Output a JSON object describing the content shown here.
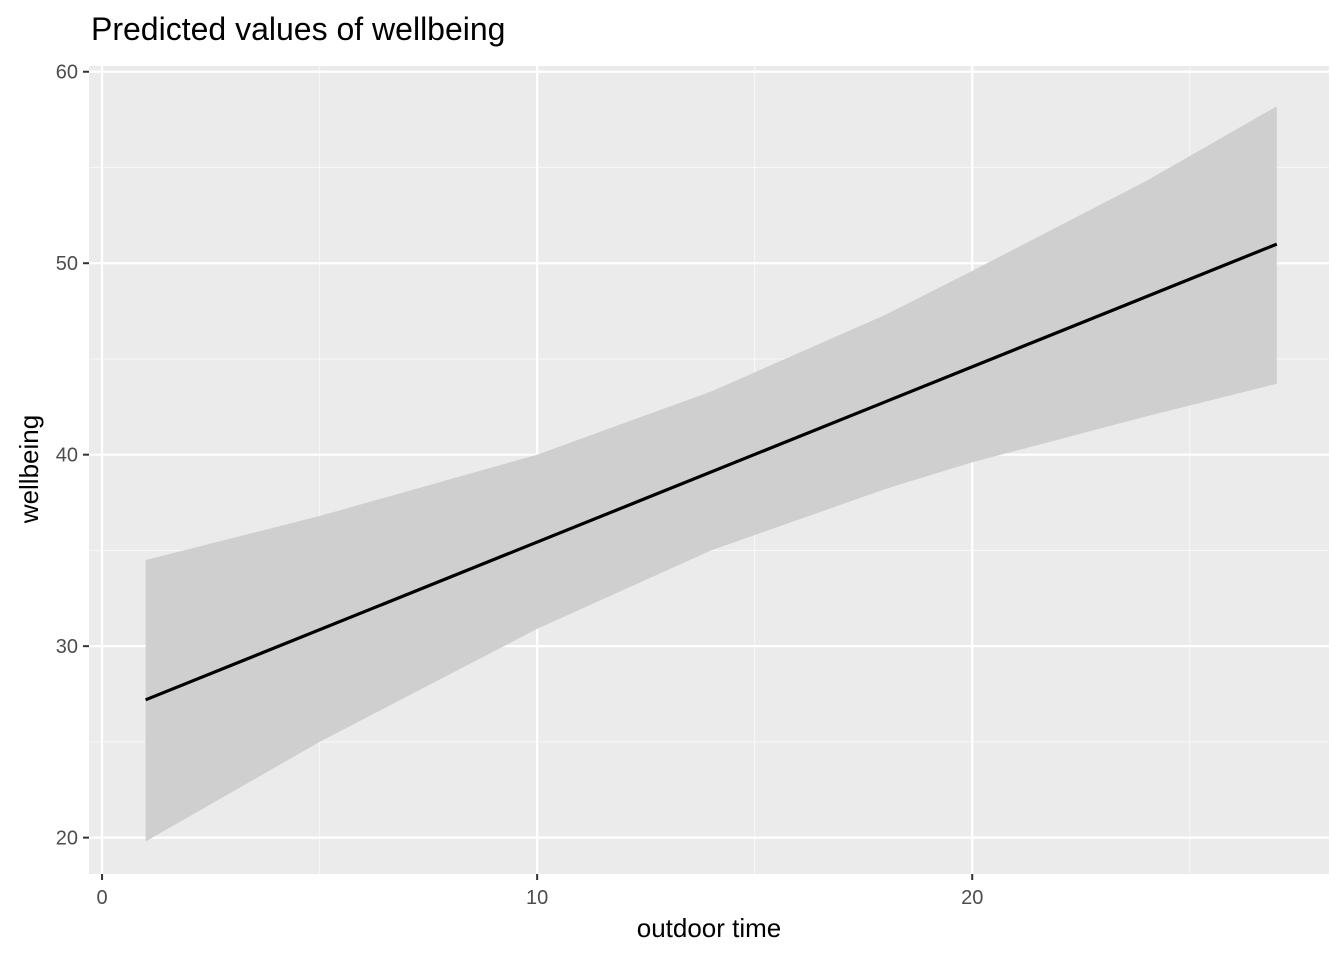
{
  "chart_data": {
    "type": "line",
    "title": "Predicted values of wellbeing",
    "xlabel": "outdoor time",
    "ylabel": "wellbeing",
    "xlim": [
      -0.3,
      28.2
    ],
    "ylim": [
      18.1,
      60.3
    ],
    "x_ticks": [
      0,
      10,
      20
    ],
    "y_ticks": [
      20,
      30,
      40,
      50,
      60
    ],
    "x_minor_ticks": [
      5,
      15,
      25
    ],
    "y_minor_ticks": [
      25,
      35,
      45,
      55
    ],
    "grid": true,
    "legend": "none",
    "series": [
      {
        "x": [
          1,
          27
        ],
        "y": [
          27.2,
          51.0
        ],
        "ribbon_x": [
          1,
          5,
          10,
          14,
          18,
          20,
          24,
          27
        ],
        "ribbon_lower": [
          19.8,
          25.0,
          30.9,
          35.0,
          38.2,
          39.6,
          42.0,
          43.7
        ],
        "ribbon_upper": [
          34.5,
          36.8,
          40.0,
          43.3,
          47.3,
          49.6,
          54.3,
          58.2
        ]
      }
    ],
    "colors": {
      "panel": "#ebebeb",
      "grid_major": "#ffffff",
      "ribbon": "#cfcfcf",
      "line": "#000000",
      "tick": "#333333"
    }
  }
}
